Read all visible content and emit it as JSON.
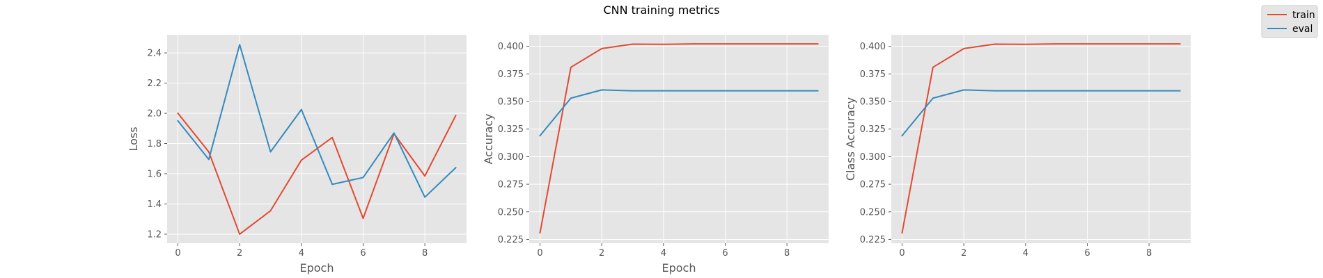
{
  "figure": {
    "suptitle": "CNN training metrics",
    "background": "#ffffff",
    "axes_face": "#e5e5e5",
    "grid_color": "#ffffff"
  },
  "legend": {
    "placement": "top-right",
    "entries": [
      {
        "label": "train",
        "color": "#E24A33"
      },
      {
        "label": "eval",
        "color": "#348ABD"
      }
    ]
  },
  "chart_data": [
    {
      "type": "line",
      "title": "",
      "xlabel": "Epoch",
      "ylabel": "Loss",
      "grid": true,
      "xlim": [
        -0.35,
        9.35
      ],
      "ylim": [
        1.14,
        2.52
      ],
      "xticks": [
        0,
        2,
        4,
        6,
        8
      ],
      "yticks": [
        1.2,
        1.4,
        1.6,
        1.8,
        2.0,
        2.2,
        2.4
      ],
      "ytick_labels": [
        "1.2",
        "1.4",
        "1.6",
        "1.8",
        "2.0",
        "2.2",
        "2.4"
      ],
      "x": [
        0,
        1,
        2,
        3,
        4,
        5,
        6,
        7,
        8,
        9
      ],
      "series": [
        {
          "name": "train",
          "color": "#E24A33",
          "values": [
            2.0,
            1.745,
            1.2,
            1.355,
            1.69,
            1.84,
            1.305,
            1.865,
            1.585,
            1.985
          ]
        },
        {
          "name": "eval",
          "color": "#348ABD",
          "values": [
            1.95,
            1.695,
            2.455,
            1.745,
            2.025,
            1.53,
            1.575,
            1.87,
            1.445,
            1.64
          ]
        }
      ]
    },
    {
      "type": "line",
      "title": "",
      "xlabel": "Epoch",
      "ylabel": "Accuracy",
      "grid": true,
      "xlim": [
        -0.35,
        9.35
      ],
      "ylim": [
        0.2215,
        0.4105
      ],
      "xticks": [
        0,
        2,
        4,
        6,
        8
      ],
      "yticks": [
        0.225,
        0.25,
        0.275,
        0.3,
        0.325,
        0.35,
        0.375,
        0.4
      ],
      "ytick_labels": [
        "0.225",
        "0.250",
        "0.275",
        "0.300",
        "0.325",
        "0.350",
        "0.375",
        "0.400"
      ],
      "x": [
        0,
        1,
        2,
        3,
        4,
        5,
        6,
        7,
        8,
        9
      ],
      "series": [
        {
          "name": "train",
          "color": "#E24A33",
          "values": [
            0.231,
            0.381,
            0.398,
            0.402,
            0.4018,
            0.4022,
            0.4022,
            0.4022,
            0.4022,
            0.4022
          ]
        },
        {
          "name": "eval",
          "color": "#348ABD",
          "values": [
            0.319,
            0.353,
            0.3605,
            0.3597,
            0.3597,
            0.3597,
            0.3597,
            0.3597,
            0.3597,
            0.3597
          ]
        }
      ]
    },
    {
      "type": "line",
      "title": "",
      "xlabel": "",
      "ylabel": "Class Accuracy",
      "grid": true,
      "xlim": [
        -0.35,
        9.35
      ],
      "ylim": [
        0.2215,
        0.4105
      ],
      "xticks": [
        0,
        2,
        4,
        6,
        8
      ],
      "yticks": [
        0.225,
        0.25,
        0.275,
        0.3,
        0.325,
        0.35,
        0.375,
        0.4
      ],
      "ytick_labels": [
        "0.225",
        "0.250",
        "0.275",
        "0.300",
        "0.325",
        "0.350",
        "0.375",
        "0.400"
      ],
      "x": [
        0,
        1,
        2,
        3,
        4,
        5,
        6,
        7,
        8,
        9
      ],
      "series": [
        {
          "name": "train",
          "color": "#E24A33",
          "values": [
            0.231,
            0.381,
            0.398,
            0.402,
            0.4018,
            0.4022,
            0.4022,
            0.4022,
            0.4022,
            0.4022
          ]
        },
        {
          "name": "eval",
          "color": "#348ABD",
          "values": [
            0.319,
            0.353,
            0.3605,
            0.3597,
            0.3597,
            0.3597,
            0.3597,
            0.3597,
            0.3597,
            0.3597
          ]
        }
      ]
    }
  ]
}
